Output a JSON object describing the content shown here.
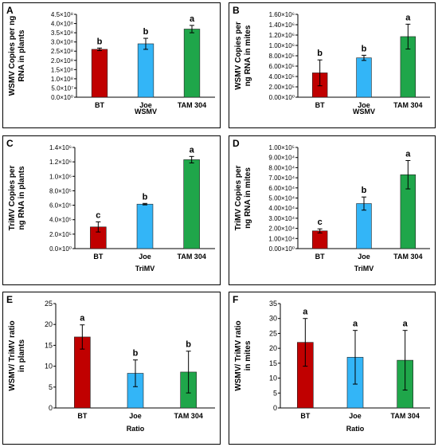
{
  "colors": {
    "BT": "#C00000",
    "Joe": "#33B5F7",
    "TAM 304": "#1FA64A",
    "axis": "#000000"
  },
  "chart_data": [
    {
      "panel": "A",
      "type": "bar",
      "categories": [
        "BT",
        "Joe",
        "TAM 304"
      ],
      "values": [
        260000000.0,
        290000000.0,
        370000000.0
      ],
      "errors": [
        7000000.0,
        30000000.0,
        20000000.0
      ],
      "letters": [
        "b",
        "b",
        "a"
      ],
      "ylabel": [
        "WSMV Copies per ng",
        "RNA in plants"
      ],
      "xlabel": "WSMV",
      "ylim": [
        0,
        450000000.0
      ],
      "ticks": [
        0,
        50000000.0,
        100000000.0,
        150000000.0,
        200000000.0,
        250000000.0,
        300000000.0,
        350000000.0,
        400000000.0,
        450000000.0
      ],
      "tick_labels": [
        "0.0×10⁰",
        "5.0×10⁷",
        "1.0×10⁸",
        "1.5×10⁸",
        "2.0×10⁸",
        "2.5×10⁸",
        "3.0×10⁸",
        "3.5×10⁸",
        "4.0×10⁸",
        "4.5×10⁸"
      ]
    },
    {
      "panel": "B",
      "type": "bar",
      "categories": [
        "BT",
        "Joe",
        "TAM 304"
      ],
      "values": [
        470000.0,
        760000.0,
        1170000.0
      ],
      "errors": [
        250000.0,
        50000.0,
        240000.0
      ],
      "letters": [
        "b",
        "b",
        "a"
      ],
      "ylabel": [
        "WSMV Copies per",
        "ng RNA in mites"
      ],
      "xlabel": "WSMV",
      "ylim": [
        0,
        1600000.0
      ],
      "ticks": [
        0,
        200000.0,
        400000.0,
        600000.0,
        800000.0,
        1000000.0,
        1200000.0,
        1400000.0,
        1600000.0
      ],
      "tick_labels": [
        "0.00×10⁰",
        "2.00×10⁵",
        "4.00×10⁵",
        "6.00×10⁵",
        "8.00×10⁵",
        "1.00×10⁶",
        "1.20×10⁶",
        "1.40×10⁶",
        "1.60×10⁶"
      ]
    },
    {
      "panel": "C",
      "type": "bar",
      "categories": [
        "BT",
        "Joe",
        "TAM 304"
      ],
      "values": [
        300000.0,
        615000.0,
        1230000.0
      ],
      "errors": [
        70000.0,
        10000.0,
        45000.0
      ],
      "letters": [
        "c",
        "b",
        "a"
      ],
      "ylabel": [
        "TriMV Copies per",
        "ng RNA in plants"
      ],
      "xlabel": "TriMV",
      "ylim": [
        0,
        1400000.0
      ],
      "ticks": [
        0,
        200000.0,
        400000.0,
        600000.0,
        800000.0,
        1000000.0,
        1200000.0,
        1400000.0
      ],
      "tick_labels": [
        "0.0×10⁰",
        "2.0×10⁵",
        "4.0×10⁵",
        "6.0×10⁵",
        "8.0×10⁵",
        "1.0×10⁶",
        "1.2×10⁶",
        "1.4×10⁶"
      ]
    },
    {
      "panel": "D",
      "type": "bar",
      "categories": [
        "BT",
        "Joe",
        "TAM 304"
      ],
      "values": [
        17500.0,
        44500.0,
        73000.0
      ],
      "errors": [
        2000.0,
        6500.0,
        14000.0
      ],
      "letters": [
        "c",
        "b",
        "a"
      ],
      "ylabel": [
        "TriMV Copies per",
        "ng RNA in mites"
      ],
      "xlabel": "TriMV",
      "ylim": [
        0,
        100000.0
      ],
      "ticks": [
        0,
        10000.0,
        20000.0,
        30000.0,
        40000.0,
        50000.0,
        60000.0,
        70000.0,
        80000.0,
        90000.0,
        100000.0
      ],
      "tick_labels": [
        "0.00×10⁰",
        "1.00×10⁴",
        "2.00×10⁴",
        "3.00×10⁴",
        "4.00×10⁴",
        "5.00×10⁴",
        "6.00×10⁴",
        "7.00×10⁴",
        "8.00×10⁴",
        "9.00×10⁴",
        "1.00×10⁵"
      ]
    },
    {
      "panel": "E",
      "type": "bar",
      "categories": [
        "BT",
        "Joe",
        "TAM 304"
      ],
      "values": [
        17.0,
        8.3,
        8.6
      ],
      "errors": [
        2.9,
        3.2,
        5.0
      ],
      "letters": [
        "a",
        "b",
        "b"
      ],
      "ylabel": [
        "WSMV/ TriMV ratio",
        "in plants"
      ],
      "xlabel": "Ratio",
      "ylim": [
        0,
        25
      ],
      "ticks": [
        0,
        5,
        10,
        15,
        20,
        25
      ],
      "tick_labels": [
        "0",
        "5",
        "10",
        "15",
        "20",
        "25"
      ]
    },
    {
      "panel": "F",
      "type": "bar",
      "categories": [
        "BT",
        "Joe",
        "TAM 304"
      ],
      "values": [
        22.0,
        17.0,
        16.0
      ],
      "errors": [
        8.0,
        9.0,
        10.0
      ],
      "letters": [
        "a",
        "a",
        "a"
      ],
      "ylabel": [
        "WSMV/ TriMV ratio",
        "in mites"
      ],
      "xlabel": "Ratio",
      "ylim": [
        0,
        35
      ],
      "ticks": [
        0,
        5,
        10,
        15,
        20,
        25,
        30,
        35
      ],
      "tick_labels": [
        "0",
        "5",
        "10",
        "15",
        "20",
        "25",
        "30",
        "35"
      ]
    }
  ]
}
